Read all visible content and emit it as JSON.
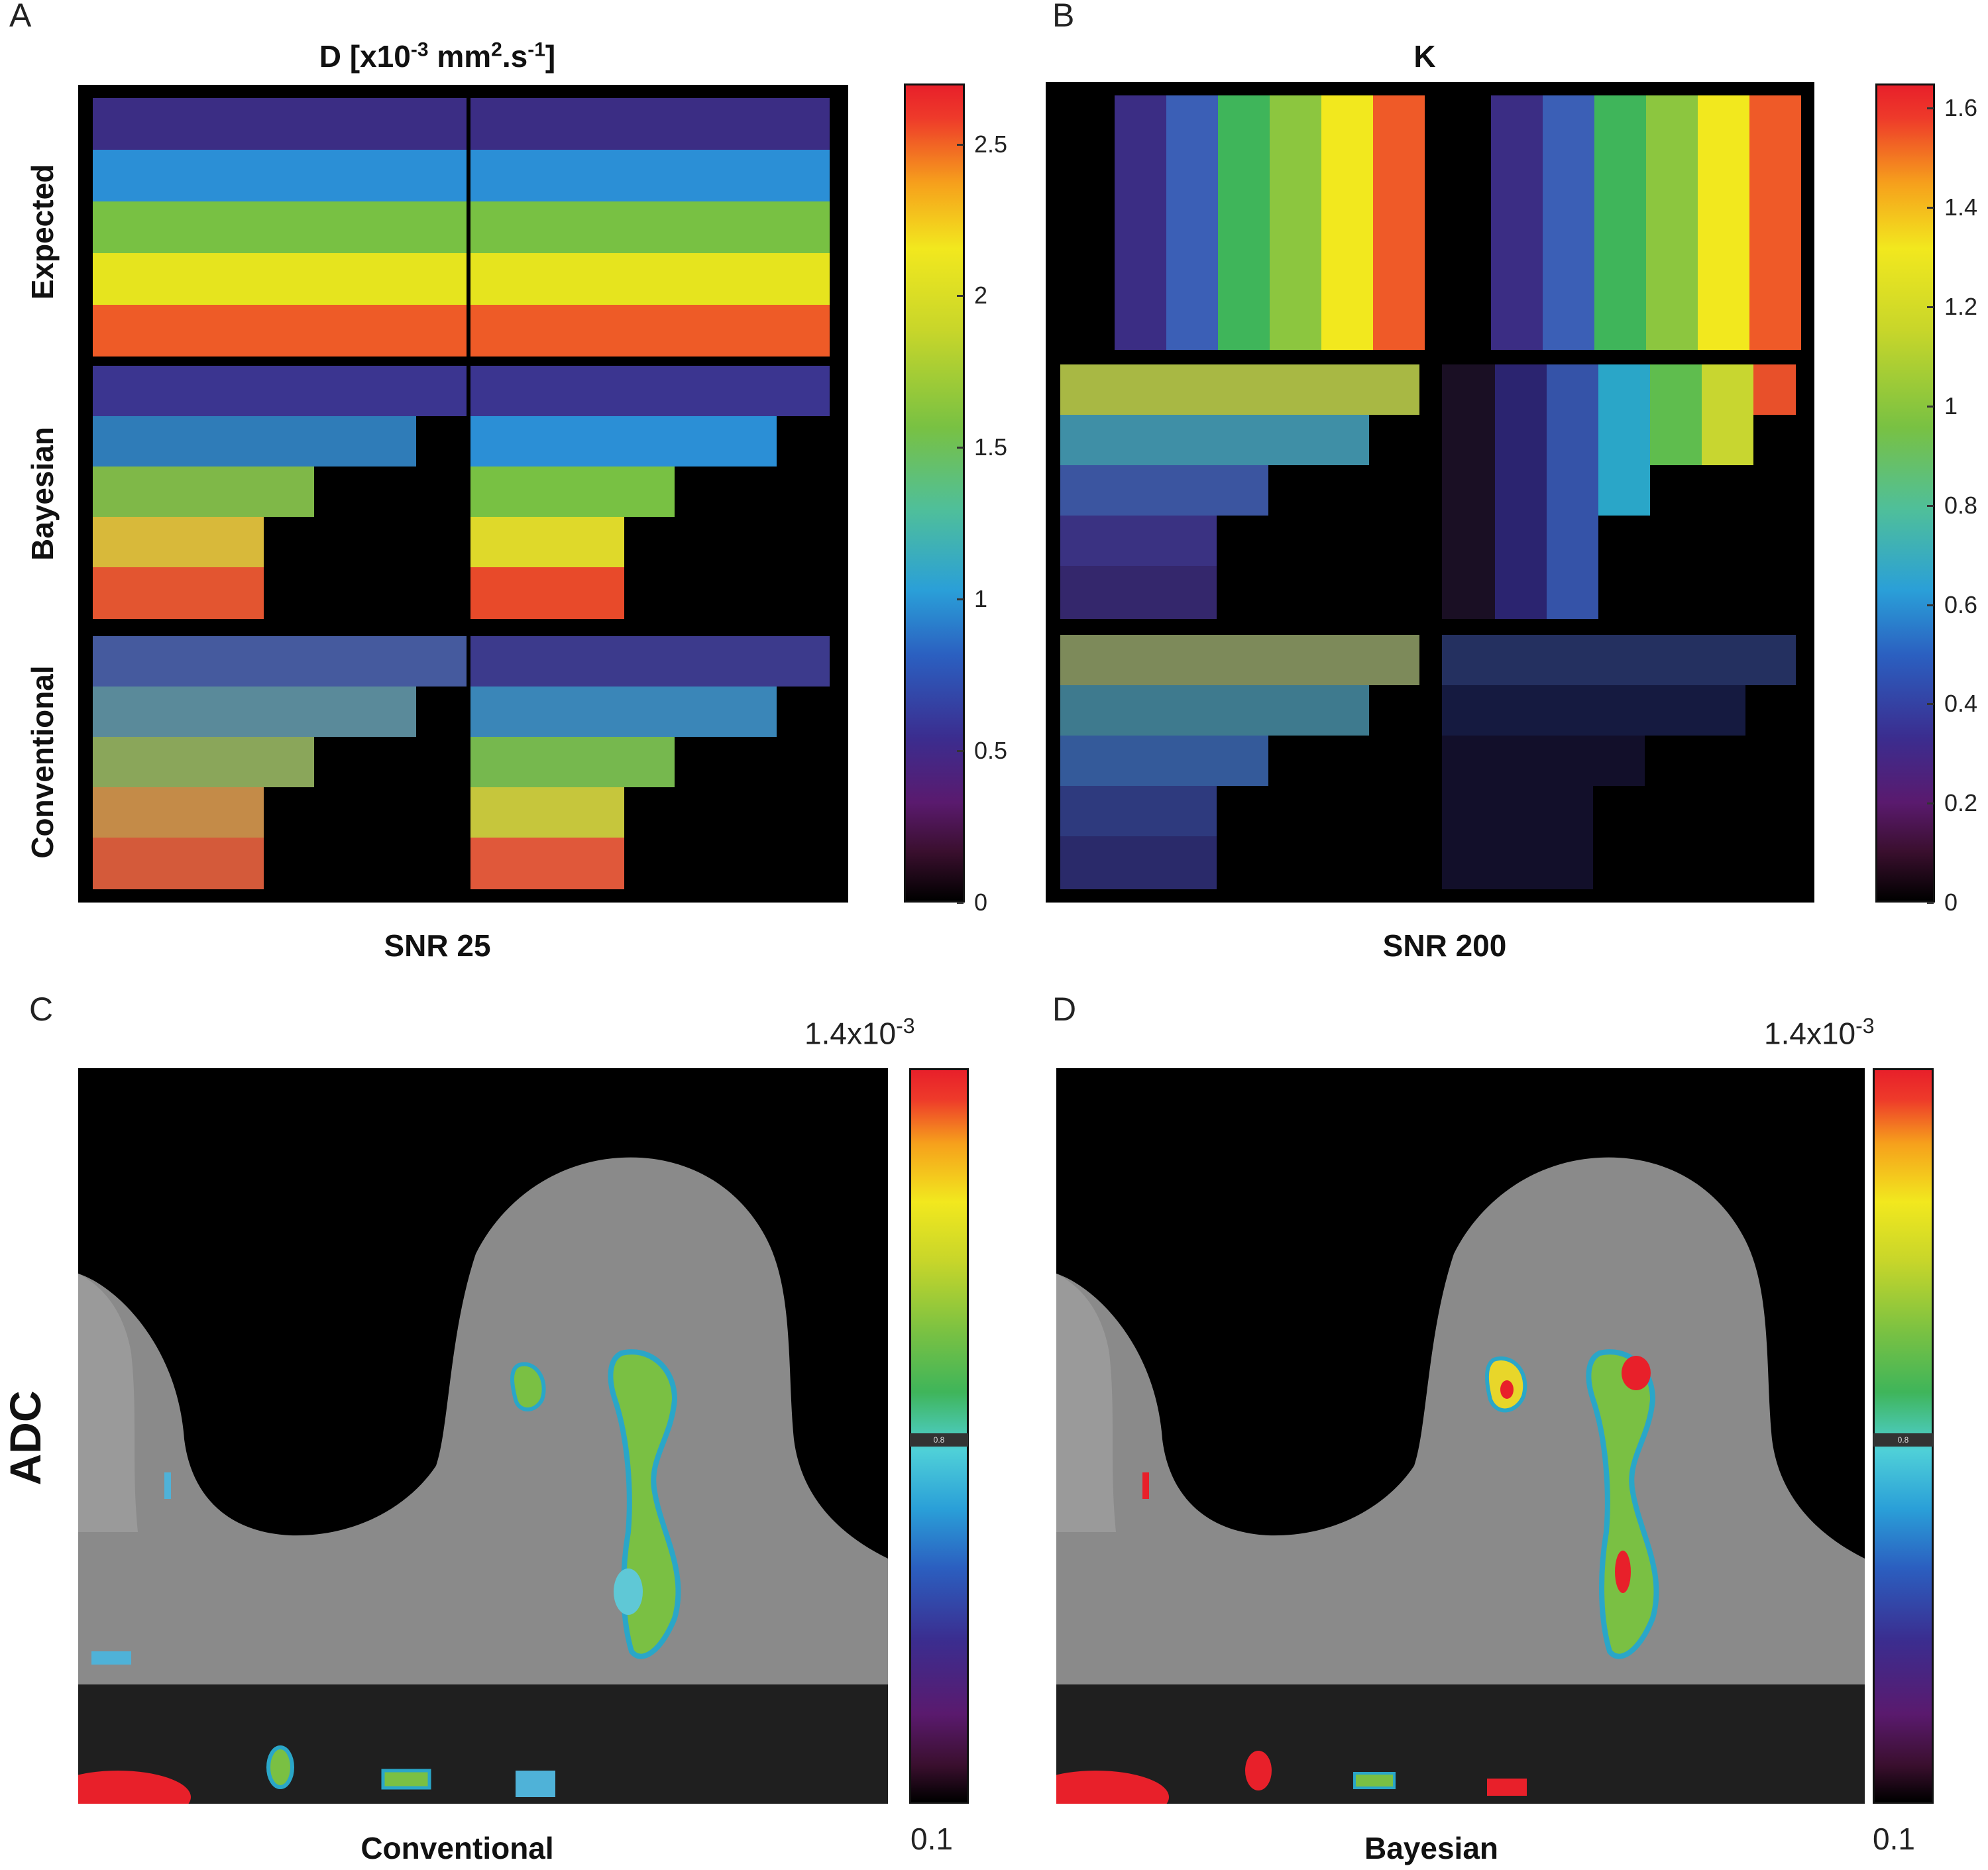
{
  "panels": {
    "A": {
      "letter": "A",
      "title_prefix": "D [x10",
      "title_exp1": "-3",
      "title_mid": " mm",
      "title_exp2": "2",
      "title_mid2": ".s",
      "title_exp3": "-1",
      "title_suffix": "]",
      "bottom_label": "SNR 25",
      "colorbar_ticks": [
        "2.5",
        "2",
        "1.5",
        "1",
        "0.5",
        "0"
      ],
      "colorbar_tick_values": [
        2.5,
        2,
        1.5,
        1,
        0.5,
        0
      ],
      "colorbar_range": [
        0,
        2.7
      ]
    },
    "B": {
      "letter": "B",
      "title": "K",
      "bottom_label": "SNR 200",
      "colorbar_ticks": [
        "1.6",
        "1.4",
        "1.2",
        "1",
        "0.8",
        "0.6",
        "0.4",
        "0.2",
        "0"
      ],
      "colorbar_tick_values": [
        1.6,
        1.4,
        1.2,
        1,
        0.8,
        0.6,
        0.4,
        0.2,
        0
      ],
      "colorbar_range": [
        0,
        1.65
      ]
    },
    "C": {
      "letter": "C",
      "bottom_label": "Conventional",
      "range_max_prefix": "1.4x10",
      "range_max_exp": "-3",
      "range_min": "0.1",
      "marker": "0.8"
    },
    "D": {
      "letter": "D",
      "bottom_label": "Bayesian",
      "range_max_prefix": "1.4x10",
      "range_max_exp": "-3",
      "range_min": "0.1",
      "marker": "0.8"
    }
  },
  "row_labels": [
    "Expected",
    "Bayesian",
    "Conventional"
  ],
  "side_label": "ADC",
  "colors": {
    "expected_bands": [
      "#3b2d84",
      "#2b8fd6",
      "#78c143",
      "#e6e41e",
      "#ee5b27"
    ],
    "expected_k_bands": [
      "#3b2d84",
      "#3b5fb6",
      "#3fb55a",
      "#8cc63f",
      "#f2e81e",
      "#ef5a28"
    ]
  }
}
